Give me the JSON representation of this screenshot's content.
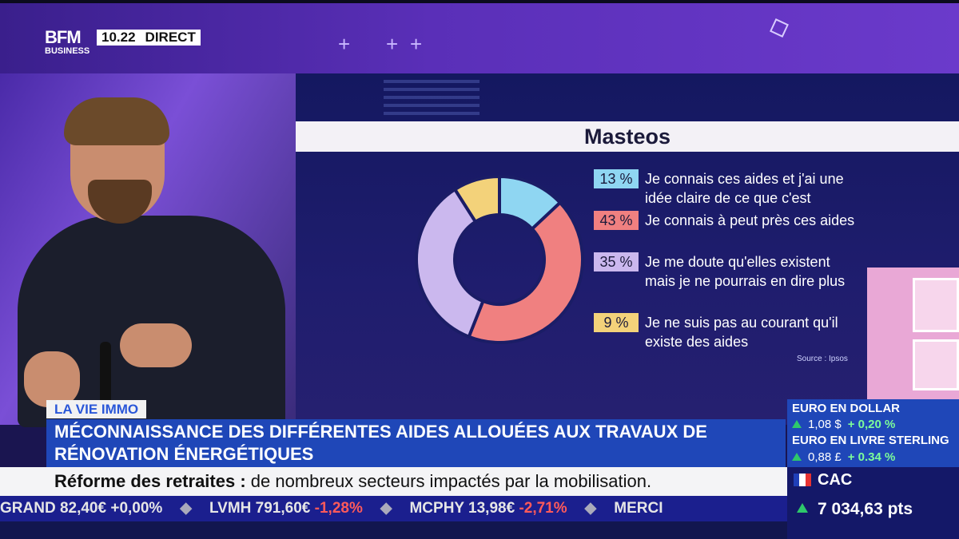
{
  "header": {
    "logo_top": "BFM",
    "logo_bottom": "BUSINESS",
    "time": "10.22",
    "live_label": "DIRECT"
  },
  "chart_data": {
    "type": "pie",
    "title": "Masteos",
    "categories": [
      "Je connais ces aides et j'ai une idée claire de ce que c'est",
      "Je connais à peut près ces aides",
      "Je me doute qu'elles existent mais je ne pourrais en dire plus",
      "Je ne suis pas au courant qu'il existe des aides"
    ],
    "values": [
      13,
      43,
      35,
      9
    ],
    "labels": [
      "13 %",
      "43 %",
      "35 %",
      "9 %"
    ],
    "colors": [
      "#8fd6f2",
      "#f08080",
      "#cbb8ee",
      "#f3d27a"
    ],
    "style": "donut",
    "source": "Source : Ipsos"
  },
  "lower_third": {
    "tag": "LA VIE IMMO",
    "headline": "MÉCONNAISSANCE DES DIFFÉRENTES AIDES ALLOUÉES AUX TRAVAUX DE RÉNOVATION ÉNERGÉTIQUES",
    "sub_bold": "Réforme des retraites :",
    "sub_text": " de nombreux secteurs impactés par la mobilisation."
  },
  "ticker": [
    {
      "name": "GRAND",
      "price": "82,40€",
      "change": "+0,00%",
      "dir": "flat"
    },
    {
      "name": "LVMH",
      "price": "791,60€",
      "change": "-1,28%",
      "dir": "down"
    },
    {
      "name": "MCPHY",
      "price": "13,98€",
      "change": "-2,71%",
      "dir": "down"
    },
    {
      "name": "MERCI",
      "price": "",
      "change": "",
      "dir": "flat"
    }
  ],
  "markets": {
    "euro_dollar_label": "EURO EN DOLLAR",
    "euro_dollar_value": "1,08 $",
    "euro_dollar_change": "+ 0,20 %",
    "euro_sterling_label": "EURO EN LIVRE STERLING",
    "euro_sterling_value": "0,88 £",
    "euro_sterling_change": "+ 0.34 %",
    "index_name": "CAC",
    "index_value": "7 034,63 pts"
  }
}
